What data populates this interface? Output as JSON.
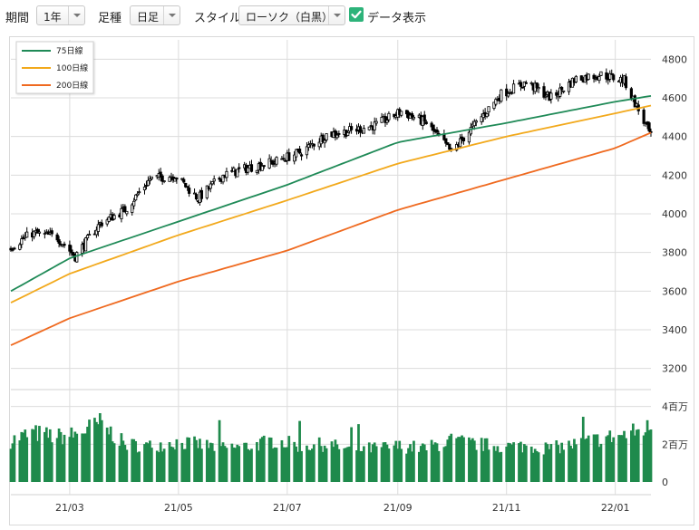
{
  "toolbar": {
    "period_label": "期間",
    "period_value": "1年",
    "type_label": "足種",
    "type_value": "日足",
    "style_label": "スタイル",
    "style_value": "ローソク（白黒）",
    "data_display_label": "データ表示",
    "data_display_checked": true,
    "accent_color": "#2db37a"
  },
  "chart_data": {
    "type": "line",
    "price_axis": {
      "ylim": [
        3100,
        4900
      ],
      "ticks": [
        "3200",
        "3400",
        "3600",
        "3800",
        "4000",
        "4200",
        "4400",
        "4600",
        "4800"
      ]
    },
    "volume_axis": {
      "ticks": [
        "0",
        "2百万",
        "4百万"
      ],
      "ylim_millions": [
        0,
        4.8
      ]
    },
    "x_ticks": [
      "21/03",
      "21/05",
      "21/07",
      "21/09",
      "21/11",
      "22/01"
    ],
    "legend": {
      "placement": "top-left",
      "entries": [
        "75日線",
        "100日線",
        "200日線"
      ]
    },
    "grid": true,
    "colors": {
      "ma75": "#1f8a57",
      "ma100": "#f2a91c",
      "ma200": "#ef6a20",
      "volume": "#1f8a4c",
      "candle": "#000000"
    },
    "series": [
      {
        "name": "75日線",
        "x": [
          "21/01/27",
          "21/03/01",
          "21/05/01",
          "21/07/01",
          "21/09/01",
          "21/11/01",
          "22/01/01",
          "22/01/21"
        ],
        "values": [
          3600,
          3770,
          3960,
          4150,
          4370,
          4470,
          4580,
          4610
        ]
      },
      {
        "name": "100日線",
        "x": [
          "21/01/27",
          "21/03/01",
          "21/05/01",
          "21/07/01",
          "21/09/01",
          "21/11/01",
          "22/01/01",
          "22/01/21"
        ],
        "values": [
          3540,
          3690,
          3890,
          4070,
          4260,
          4400,
          4520,
          4560
        ]
      },
      {
        "name": "200日線",
        "x": [
          "21/01/27",
          "21/03/01",
          "21/05/01",
          "21/07/01",
          "21/09/01",
          "21/11/01",
          "22/01/01",
          "22/01/21"
        ],
        "values": [
          3320,
          3460,
          3650,
          3810,
          4020,
          4180,
          4340,
          4420
        ]
      }
    ],
    "price_close": {
      "x": [
        "21/01/27",
        "21/02/08",
        "21/02/22",
        "21/03/04",
        "21/03/18",
        "21/04/01",
        "21/04/15",
        "21/04/29",
        "21/05/12",
        "21/05/26",
        "21/06/10",
        "21/06/24",
        "21/07/09",
        "21/07/23",
        "21/08/06",
        "21/08/20",
        "21/09/03",
        "21/09/17",
        "21/10/01",
        "21/10/15",
        "21/10/29",
        "21/11/12",
        "21/11/26",
        "21/12/10",
        "21/12/24",
        "22/01/06",
        "22/01/21"
      ],
      "values": [
        3830,
        3900,
        3880,
        3780,
        3950,
        4020,
        4180,
        4200,
        4080,
        4200,
        4240,
        4270,
        4320,
        4410,
        4430,
        4460,
        4530,
        4470,
        4320,
        4470,
        4620,
        4680,
        4600,
        4700,
        4720,
        4690,
        4400
      ]
    },
    "volume_millions": {
      "x": [
        "21/01/27",
        "21/02/08",
        "21/02/22",
        "21/03/04",
        "21/03/18",
        "21/04/01",
        "21/04/15",
        "21/04/29",
        "21/05/12",
        "21/05/26",
        "21/06/10",
        "21/06/24",
        "21/07/09",
        "21/07/23",
        "21/08/06",
        "21/08/20",
        "21/09/03",
        "21/09/17",
        "21/10/01",
        "21/10/15",
        "21/10/29",
        "21/11/12",
        "21/11/26",
        "21/12/10",
        "21/12/24",
        "22/01/06",
        "22/01/21"
      ],
      "values": [
        2.2,
        2.6,
        2.4,
        2.5,
        3.1,
        2.0,
        1.9,
        2.1,
        2.0,
        1.8,
        1.9,
        2.2,
        1.9,
        2.0,
        1.7,
        1.8,
        1.9,
        1.8,
        2.2,
        2.0,
        1.9,
        1.9,
        1.8,
        2.0,
        2.3,
        2.5,
        2.9
      ]
    }
  }
}
